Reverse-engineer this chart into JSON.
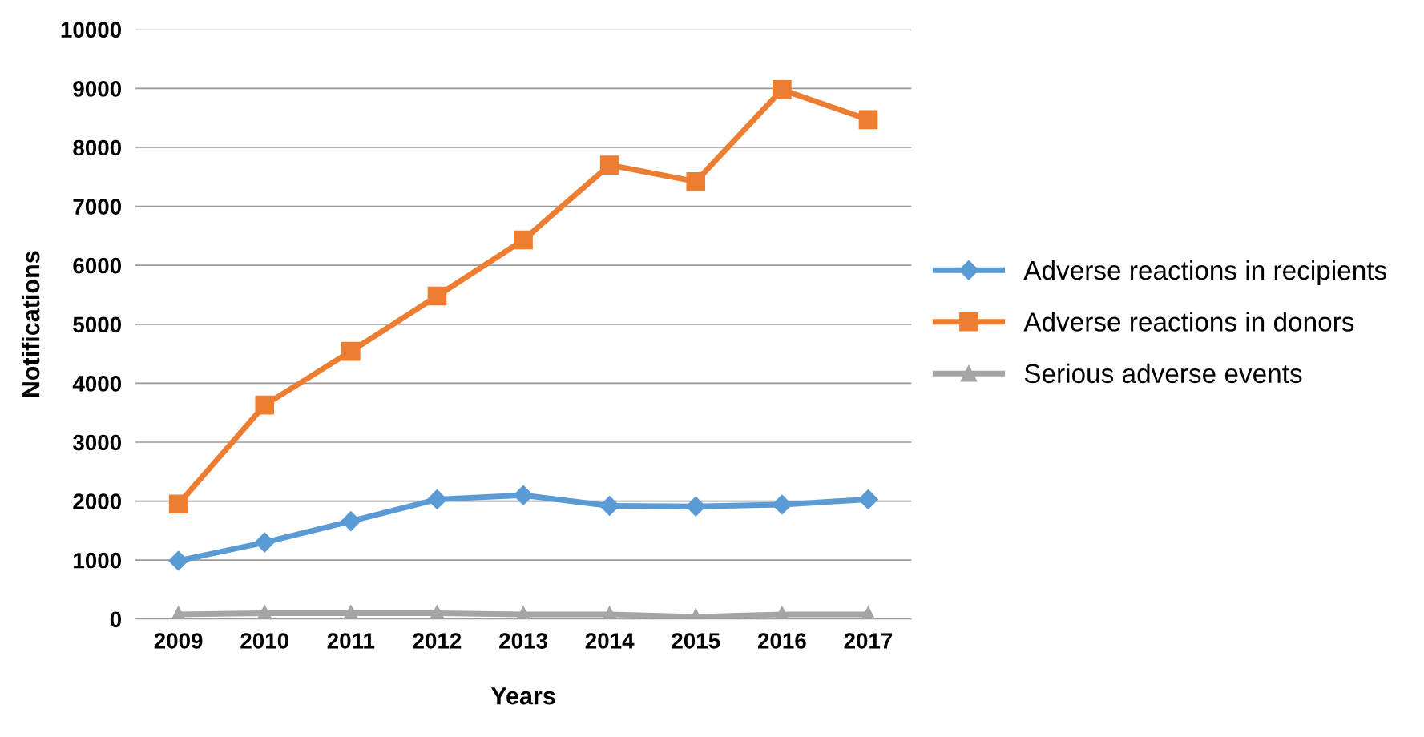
{
  "chart_data": {
    "type": "line",
    "xlabel": "Years",
    "ylabel": "Notifications",
    "categories": [
      "2009",
      "2010",
      "2011",
      "2012",
      "2013",
      "2014",
      "2015",
      "2016",
      "2017"
    ],
    "series": [
      {
        "name": "Adverse reactions in recipients",
        "color": "#5b9bd5",
        "marker": "diamond",
        "values": [
          990,
          1300,
          1660,
          2030,
          2100,
          1920,
          1910,
          1940,
          2030
        ]
      },
      {
        "name": "Adverse reactions in donors",
        "color": "#ed7d31",
        "marker": "square",
        "values": [
          1950,
          3630,
          4540,
          5480,
          6430,
          7700,
          7420,
          8980,
          8470
        ]
      },
      {
        "name": "Serious adverse events",
        "color": "#a5a5a5",
        "marker": "triangle",
        "values": [
          80,
          100,
          100,
          100,
          80,
          80,
          40,
          80,
          80
        ]
      }
    ],
    "ylim": [
      0,
      10000
    ],
    "yticks": [
      0,
      1000,
      2000,
      3000,
      4000,
      5000,
      6000,
      7000,
      8000,
      9000,
      10000
    ],
    "grid": "y",
    "legend": "right",
    "line_style": "solid"
  }
}
